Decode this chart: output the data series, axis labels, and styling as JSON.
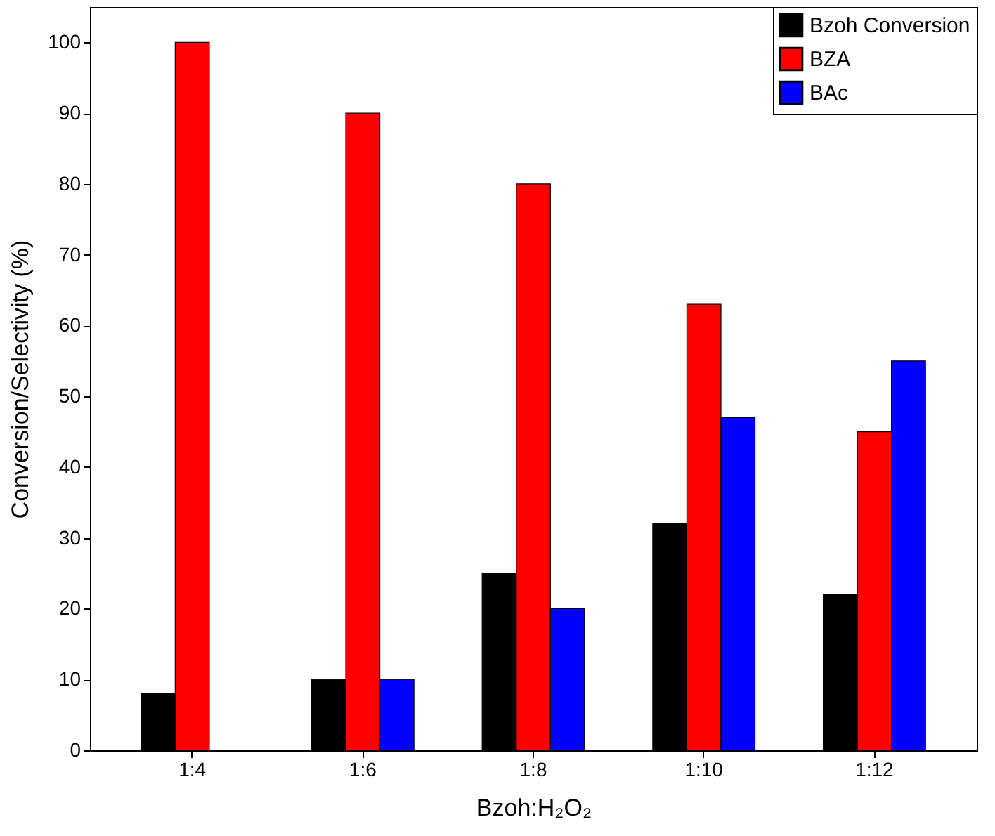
{
  "chart_data": {
    "type": "bar",
    "xlabel": "Bzoh:H₂O₂",
    "ylabel": "Conversion/Selectivity (%)",
    "categories": [
      "1:4",
      "1:6",
      "1:8",
      "1:10",
      "1:12"
    ],
    "series": [
      {
        "name": "Bzoh Conversion",
        "color": "#000000",
        "values": [
          8,
          10,
          25,
          32,
          22
        ]
      },
      {
        "name": "BZA",
        "color": "#ff0000",
        "values": [
          100,
          90,
          80,
          63,
          45
        ]
      },
      {
        "name": "BAc",
        "color": "#0000ff",
        "values": [
          null,
          10,
          20,
          47,
          55
        ]
      }
    ],
    "ylim": [
      0,
      105
    ],
    "yticks": [
      0,
      10,
      20,
      30,
      40,
      50,
      60,
      70,
      80,
      90,
      100
    ],
    "grid": false,
    "legend": "top right"
  }
}
